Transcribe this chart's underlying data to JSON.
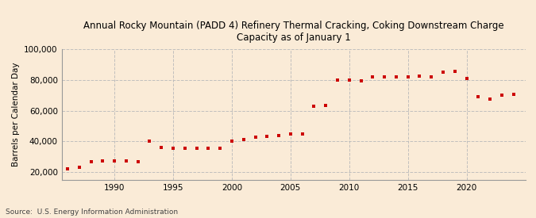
{
  "title": "Annual Rocky Mountain (PADD 4) Refinery Thermal Cracking, Coking Downstream Charge\nCapacity as of January 1",
  "ylabel": "Barrels per Calendar Day",
  "source": "Source:  U.S. Energy Information Administration",
  "background_color": "#faebd7",
  "marker_color": "#cc0000",
  "grid_color": "#bbbbbb",
  "ylim": [
    15000,
    100000
  ],
  "yticks": [
    20000,
    40000,
    60000,
    80000,
    100000
  ],
  "ytick_labels": [
    "20,000",
    "40,000",
    "60,000",
    "80,000",
    "100,000"
  ],
  "xlim": [
    1985.5,
    2025
  ],
  "xticks": [
    1990,
    1995,
    2000,
    2005,
    2010,
    2015,
    2020
  ],
  "years": [
    1986,
    1987,
    1988,
    1989,
    1990,
    1991,
    1992,
    1993,
    1994,
    1995,
    1996,
    1997,
    1998,
    1999,
    2000,
    2001,
    2002,
    2003,
    2004,
    2005,
    2006,
    2007,
    2008,
    2009,
    2010,
    2011,
    2012,
    2013,
    2014,
    2015,
    2016,
    2017,
    2018,
    2019,
    2020,
    2021,
    2022,
    2023,
    2024
  ],
  "values": [
    22000,
    23000,
    27000,
    27500,
    27500,
    27500,
    27000,
    40000,
    36000,
    35500,
    35500,
    35500,
    35500,
    35500,
    40000,
    41000,
    43000,
    43500,
    44000,
    45000,
    45000,
    63000,
    63500,
    80000,
    80000,
    79500,
    82000,
    82000,
    82000,
    82000,
    82500,
    82000,
    85000,
    85500,
    81000,
    69000,
    67500,
    70000,
    70500
  ],
  "title_fontsize": 8.5,
  "tick_fontsize": 7.5,
  "ylabel_fontsize": 7.5,
  "source_fontsize": 6.5
}
